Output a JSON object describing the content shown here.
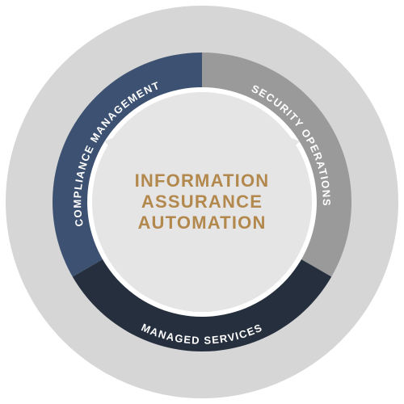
{
  "diagram": {
    "center": {
      "lines": [
        "INFORMATION",
        "ASSURANCE",
        "AUTOMATION"
      ]
    },
    "segments": {
      "compliance": {
        "label": "COMPLIANCE MANAGEMENT"
      },
      "security": {
        "label": "SECURITY OPERATIONS"
      },
      "managed": {
        "label": "MANAGED SERVICES"
      }
    }
  },
  "colors": {
    "compliance": "#3d5272",
    "security": "#9a9a9a",
    "managed": "#252f3e",
    "center_fill": "#e5e5e6",
    "center_text": "#b3884d",
    "outer_ring": "#d6d6d6",
    "inner_ring": "#ffffff"
  }
}
